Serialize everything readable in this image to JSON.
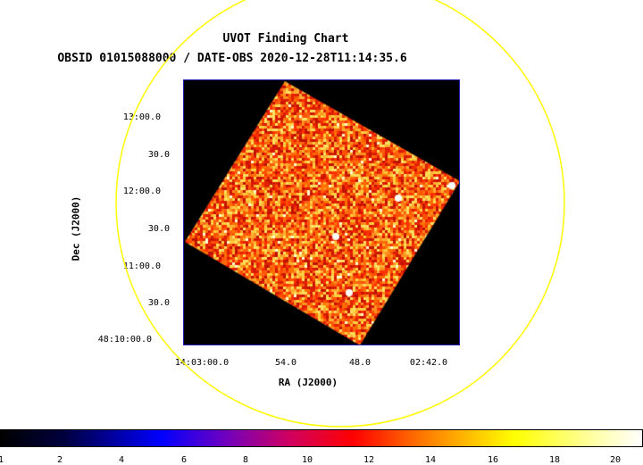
{
  "header": {
    "title": "UVOT Finding Chart",
    "subtitle": "OBSID 01015088000 / DATE-OBS 2020-12-28T11:14:35.6"
  },
  "axes": {
    "xlabel": "RA (J2000)",
    "ylabel": "Dec (J2000)",
    "xticks": [
      "14:03:00.0",
      "54.0",
      "48.0",
      "02:42.0"
    ],
    "yticks": [
      "13:00.0",
      "30.0",
      "12:00.0",
      "30.0",
      "11:00.0",
      "30.0",
      "48:10:00.0"
    ]
  },
  "colorbar": {
    "ticks": [
      "1",
      "2",
      "4",
      "6",
      "8",
      "10",
      "12",
      "14",
      "16",
      "18",
      "20"
    ]
  },
  "colors": {
    "circle": "#ffff00",
    "frame": "#1e1eb4",
    "background": "#000000"
  }
}
